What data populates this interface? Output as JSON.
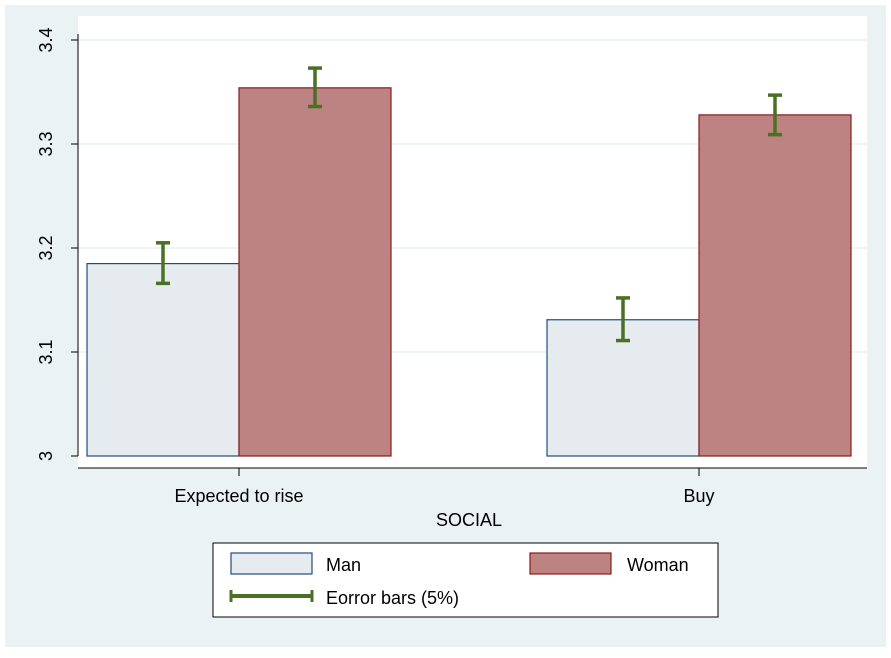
{
  "chart_data": {
    "type": "bar",
    "title": "",
    "xlabel": "SOCIAL",
    "ylabel": "",
    "categories": [
      "Expected to rise",
      "Buy"
    ],
    "series": [
      {
        "name": "Man",
        "values": [
          3.185,
          3.131
        ],
        "error_low": [
          3.166,
          3.111
        ],
        "error_high": [
          3.205,
          3.152
        ],
        "color": "#e6ebf0",
        "edge": "#1f4e79"
      },
      {
        "name": "Woman",
        "values": [
          3.354,
          3.328
        ],
        "error_low": [
          3.336,
          3.309
        ],
        "error_high": [
          3.373,
          3.347
        ],
        "color": "#bd8282",
        "edge": "#8b1a1a"
      }
    ],
    "errorbar_label": "Eorror bars (5%)",
    "errorbar_color": "#4a7023",
    "ylim": [
      3.0,
      3.4
    ],
    "yticks": [
      "3",
      "3.1",
      "3.2",
      "3.3",
      "3.4"
    ],
    "grid": true,
    "legend_position": "bottom",
    "background": "#eaf2f3",
    "plot_background": "#ffffff"
  }
}
